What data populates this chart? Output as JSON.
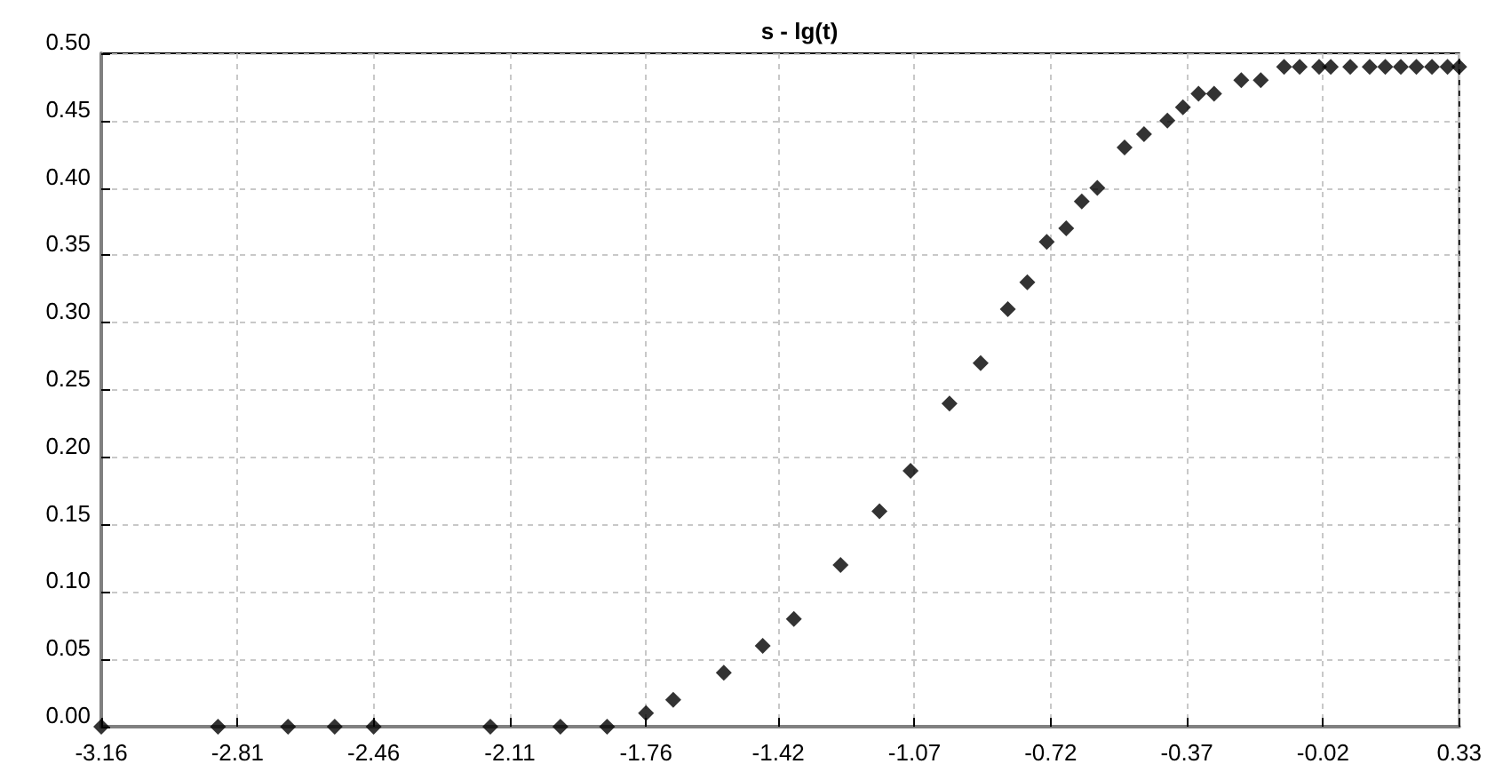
{
  "chart_data": {
    "type": "scatter",
    "title": "s - lg(t)",
    "x": [
      -3.16,
      -2.86,
      -2.68,
      -2.56,
      -2.46,
      -2.16,
      -1.98,
      -1.86,
      -1.76,
      -1.69,
      -1.56,
      -1.46,
      -1.38,
      -1.26,
      -1.16,
      -1.08,
      -0.98,
      -0.9,
      -0.83,
      -0.78,
      -0.73,
      -0.68,
      -0.64,
      -0.6,
      -0.53,
      -0.48,
      -0.42,
      -0.38,
      -0.34,
      -0.3,
      -0.23,
      -0.18,
      -0.12,
      -0.08,
      -0.03,
      0.0,
      0.05,
      0.1,
      0.14,
      0.18,
      0.22,
      0.26,
      0.3,
      0.33
    ],
    "values": [
      0,
      0,
      0,
      0,
      0,
      0,
      0,
      0,
      0.01,
      0.02,
      0.04,
      0.06,
      0.08,
      0.12,
      0.16,
      0.19,
      0.24,
      0.27,
      0.31,
      0.33,
      0.36,
      0.37,
      0.39,
      0.4,
      0.43,
      0.44,
      0.45,
      0.46,
      0.47,
      0.47,
      0.48,
      0.48,
      0.49,
      0.49,
      0.49,
      0.49,
      0.49,
      0.49,
      0.49,
      0.49,
      0.49,
      0.49,
      0.49,
      0.49
    ],
    "color": "#000000",
    "marker": "diamond",
    "grid": true,
    "xlim": [
      -3.16,
      0.33
    ],
    "xticks": [
      -3.16,
      -2.81,
      -2.46,
      -2.11,
      -1.76,
      -1.42,
      -1.07,
      -0.72,
      -0.37,
      -0.02,
      0.33
    ],
    "ylim": [
      0,
      0.5
    ],
    "yticks": [
      {
        "value": 0,
        "label": "0.00"
      },
      {
        "value": 0.05,
        "label": "0.05"
      },
      {
        "value": 0.1,
        "label": "0.10"
      },
      {
        "value": 0.15,
        "label": "0.15"
      },
      {
        "value": 0.2,
        "label": "0.20"
      },
      {
        "value": 0.25,
        "label": "0.25"
      },
      {
        "value": 0.3,
        "label": "0.30"
      },
      {
        "value": 0.35,
        "label": "0.35"
      },
      {
        "value": 0.4,
        "label": "0.40"
      },
      {
        "value": 0.45,
        "label": "0.45"
      },
      {
        "value": 0.5,
        "label": "0.50"
      }
    ]
  }
}
